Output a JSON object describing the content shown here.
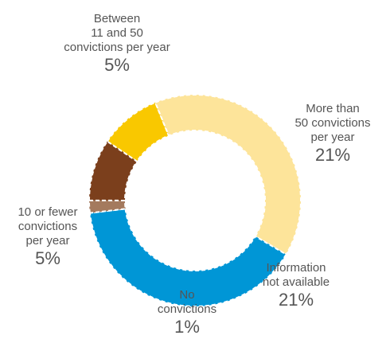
{
  "chart_data": {
    "type": "donut",
    "categories": [
      "Between\n11 and 50\nconvictions per year",
      "More than\n50 convictions\nper year",
      "Information\nnot available",
      "No\nconvictions",
      "10 or fewer\nconvictions\nper year"
    ],
    "values": [
      5,
      21,
      21,
      1,
      5
    ],
    "value_labels": [
      "5%",
      "21%",
      "21%",
      "1%",
      "5%"
    ],
    "colors": [
      "#f9c800",
      "#fde49a",
      "#0096d6",
      "#a47a5e",
      "#7b3f1c"
    ]
  }
}
